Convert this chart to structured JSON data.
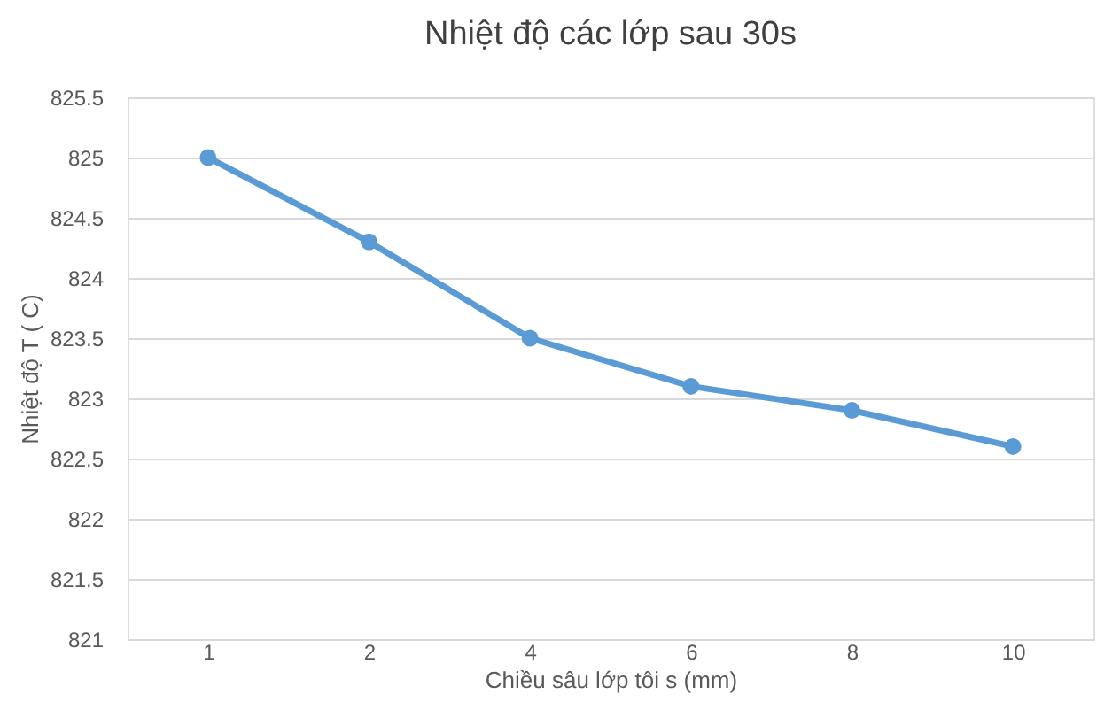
{
  "chart_data": {
    "type": "line",
    "title": "Nhiệt độ các lớp sau 30s",
    "xlabel": "Chiều sâu lớp tôi s (mm)",
    "ylabel": "Nhiệt độ T ( C)",
    "categories": [
      "1",
      "2",
      "4",
      "6",
      "8",
      "10"
    ],
    "series": [
      {
        "color": "#5b9bd5",
        "values": [
          825,
          824.3,
          823.5,
          823.1,
          822.9,
          822.6
        ]
      }
    ],
    "ylim": [
      821,
      825.5
    ],
    "yticks": [
      821,
      821.5,
      822,
      822.5,
      823,
      823.5,
      824,
      824.5,
      825,
      825.5
    ],
    "grid": "y",
    "marker": "circle",
    "line_style": "solid"
  }
}
